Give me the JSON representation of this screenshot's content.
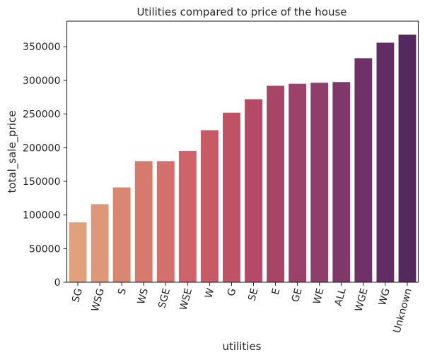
{
  "chart_data": {
    "type": "bar",
    "title": "Utilities compared to price of the house",
    "xlabel": "utilities",
    "ylabel": "total_sale_price",
    "categories": [
      "SG",
      "WSG",
      "S",
      "WS",
      "SGE",
      "WSE",
      "W",
      "G",
      "SE",
      "E",
      "GE",
      "WE",
      "ALL",
      "WGE",
      "WG",
      "Unknown"
    ],
    "values": [
      89000,
      116000,
      141000,
      180000,
      180000,
      195000,
      226000,
      252000,
      272000,
      292000,
      295000,
      296500,
      297500,
      333000,
      356000,
      368000
    ],
    "colors": [
      "#e1a17c",
      "#de9777",
      "#da8772",
      "#d77a6e",
      "#d3706c",
      "#cf6369",
      "#c85a66",
      "#bf5265",
      "#b44a65",
      "#a84567",
      "#9c4169",
      "#8f3d6a",
      "#7f386a",
      "#6f3167",
      "#622c64",
      "#542a5e"
    ],
    "yticks": [
      0,
      50000,
      100000,
      150000,
      200000,
      250000,
      300000,
      350000
    ],
    "ylim": [
      0,
      388000
    ],
    "grid": false,
    "legend": "none"
  }
}
